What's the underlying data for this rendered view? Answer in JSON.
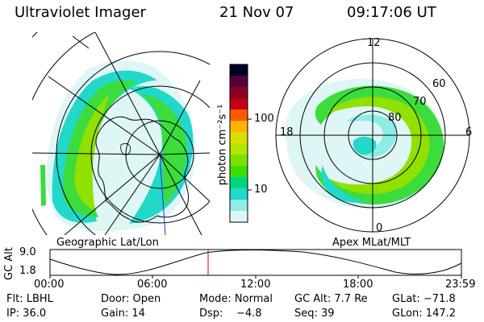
{
  "header": {
    "instrument": "Ultraviolet Imager",
    "date": "21 Nov 07",
    "time": "09:17:06 UT"
  },
  "left_map": {
    "caption": "Geographic Lat/Lon"
  },
  "right_map": {
    "caption": "Apex MLat/MLT",
    "mlt_labels": {
      "top": "12",
      "left": "18",
      "right": "6",
      "bottom": "0"
    },
    "lat_labels": [
      "60",
      "70",
      "80"
    ]
  },
  "colorbar": {
    "unit_label": "photon cm⁻²s⁻¹",
    "ticks": [
      "100",
      "10"
    ],
    "colors": [
      "#000022",
      "#220033",
      "#55003a",
      "#8a0022",
      "#c0001a",
      "#ff3a00",
      "#ff8c00",
      "#ffc800",
      "#dcdc00",
      "#90e000",
      "#3ce000",
      "#00d650",
      "#22d8c8",
      "#8cece6",
      "#dff6f6"
    ]
  },
  "orbit_plot": {
    "ylabel": "GC Alt",
    "yticks": [
      "9.0",
      "1.8"
    ],
    "xticks": [
      "00:00",
      "06:00",
      "12:00",
      "18:00",
      "23:59"
    ],
    "marker_time": "09:17"
  },
  "info": {
    "row1": {
      "flt": "Flt: LBHL",
      "door": "Door: Open",
      "mode": "Mode: Normal",
      "gcalt": "GC Alt: 7.7 Re",
      "glat": "GLat: −71.8"
    },
    "row2": {
      "ip": "IP: 36.0",
      "gain": "Gain: 14",
      "dsp": "Dsp:    −4.8",
      "seq": "Seq: 39",
      "glon": "GLon: 147.2"
    }
  }
}
